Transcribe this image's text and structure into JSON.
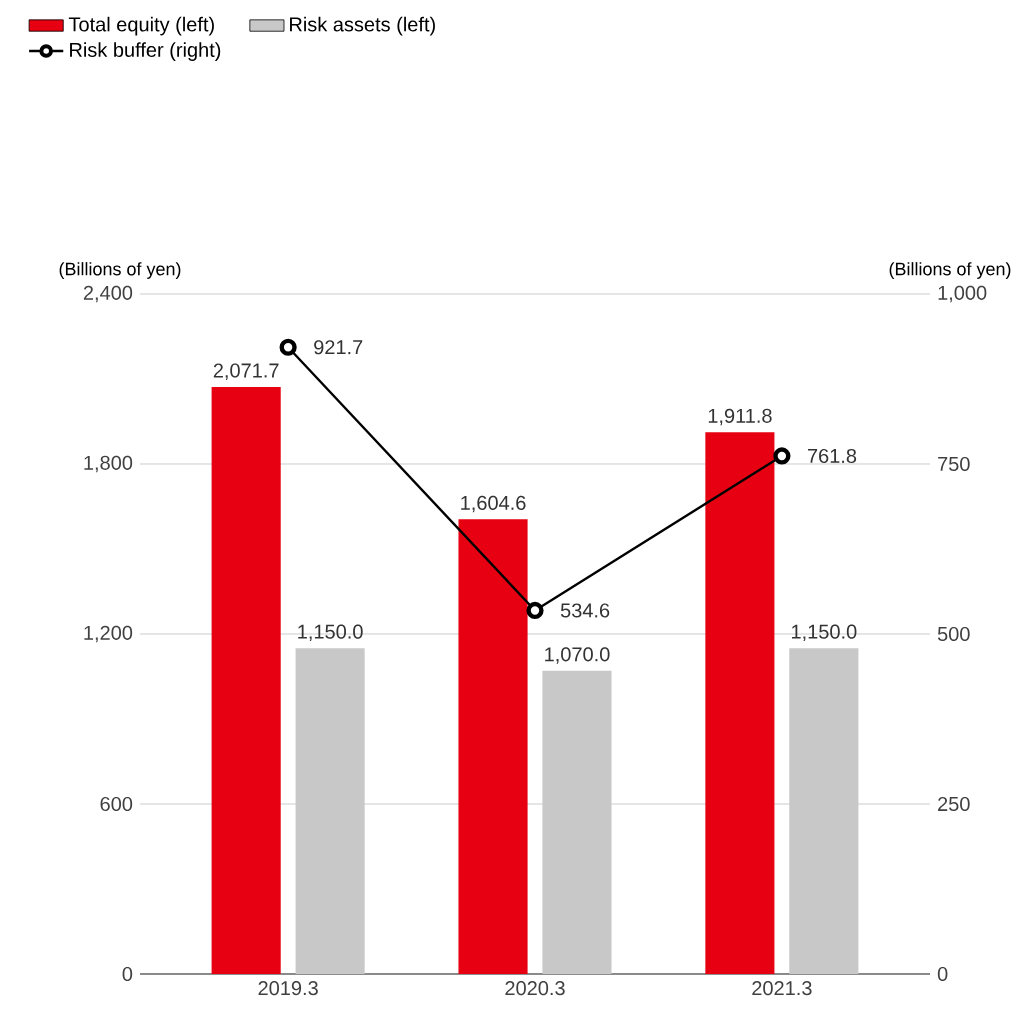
{
  "chart_data": {
    "type": "bar",
    "categories": [
      "2019.3",
      "2020.3",
      "2021.3"
    ],
    "series": [
      {
        "name": "Total equity (left)",
        "color": "#e60012",
        "values": [
          2071.7,
          1604.6,
          1911.8
        ],
        "value_labels": [
          "2,071.7",
          "1,604.6",
          "1,911.8"
        ]
      },
      {
        "name": "Risk assets (left)",
        "color": "#c8c8c8",
        "values": [
          1150.0,
          1070.0,
          1150.0
        ],
        "value_labels": [
          "1,150.0",
          "1,070.0",
          "1,150.0"
        ]
      },
      {
        "name": "Risk buffer (right)",
        "type": "line",
        "axis": "y2",
        "color": "#000000",
        "marker": "circle",
        "values": [
          921.7,
          534.6,
          761.8
        ],
        "value_labels": [
          "921.7",
          "534.6",
          "761.8"
        ]
      }
    ],
    "ylabel": "(Billions of yen)",
    "y2label": "(Billions of yen)",
    "ylim": [
      0,
      2400
    ],
    "yticks": [
      {
        "value": 0,
        "label": "0"
      },
      {
        "value": 600,
        "label": "600"
      },
      {
        "value": 1200,
        "label": "1,200"
      },
      {
        "value": 1800,
        "label": "1,800"
      },
      {
        "value": 2400,
        "label": "2,400"
      }
    ],
    "y2lim": [
      0,
      1000
    ],
    "y2ticks": [
      {
        "value": 0,
        "label": "0"
      },
      {
        "value": 250,
        "label": "250"
      },
      {
        "value": 500,
        "label": "500"
      },
      {
        "value": 750,
        "label": "750"
      },
      {
        "value": 1000,
        "label": "1,000"
      }
    ],
    "grid": "y",
    "legend": "top left"
  }
}
